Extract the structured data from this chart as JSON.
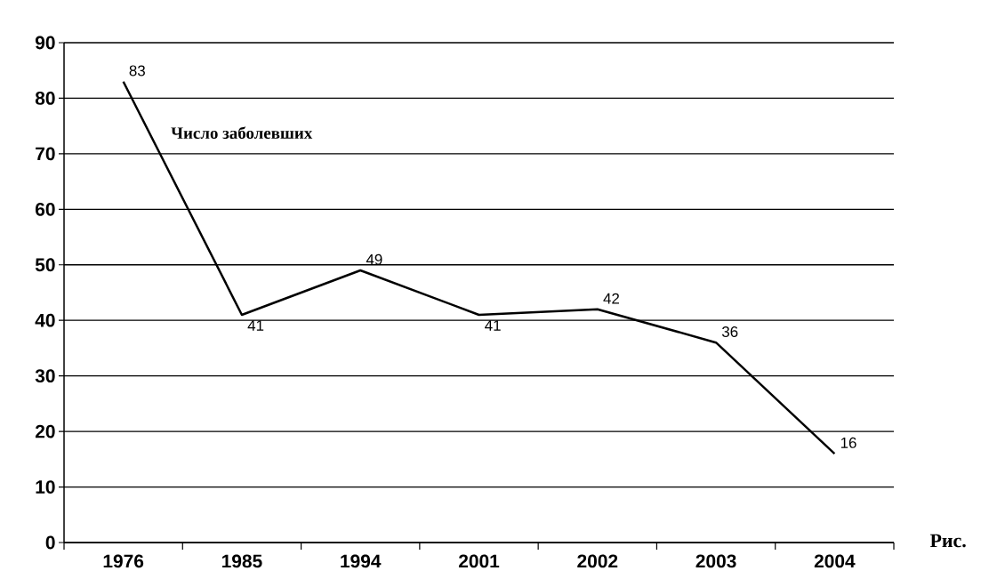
{
  "chart_data": {
    "type": "line",
    "categories": [
      "1976",
      "1985",
      "1994",
      "2001",
      "2002",
      "2003",
      "2004"
    ],
    "series": [
      {
        "name": "Число заболевших",
        "color": "#000000",
        "values": [
          83,
          41,
          49,
          41,
          42,
          36,
          16
        ]
      }
    ],
    "ylim": [
      0,
      90
    ],
    "yticks": [
      0,
      10,
      20,
      30,
      40,
      50,
      60,
      70,
      80,
      90
    ],
    "grid": "y",
    "data_labels": true,
    "marker": "none",
    "line_style": "solid",
    "annotations": [
      "Рис."
    ]
  }
}
